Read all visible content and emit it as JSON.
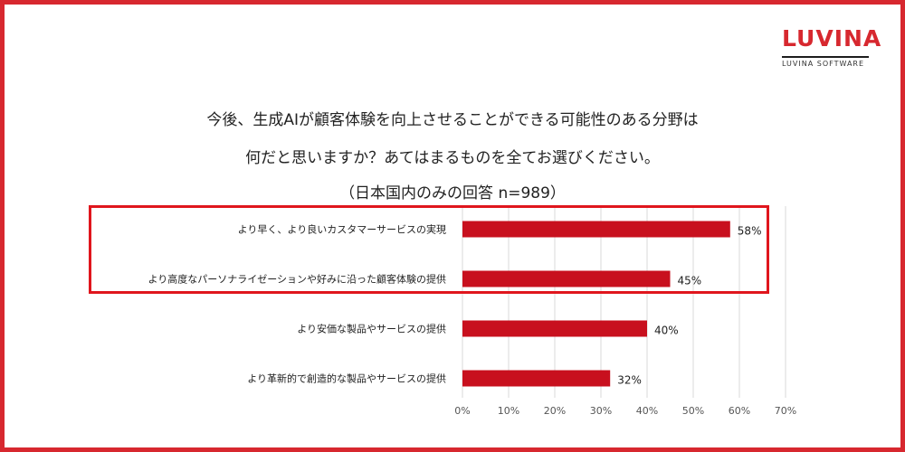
{
  "logo": {
    "mark": "LUVINA",
    "sub": "LUVINA SOFTWARE"
  },
  "title": {
    "line1": "今後、生成AIが顧客体験を向上させることができる可能性のある分野は",
    "line2": "何だと思いますか？あてはまるものを全てお選びください。",
    "line3": "（日本国内のみの回答 n=989）"
  },
  "colors": {
    "frame": "#d7282f",
    "bar": "#c8101e",
    "highlight": "#e0161d",
    "grid": "#d9d9d9"
  },
  "chart_data": {
    "type": "bar",
    "orientation": "horizontal",
    "categories": [
      "より早く、より良いカスタマーサービスの実現",
      "より高度なパーソナライゼーションや好みに沿った顧客体験の提供",
      "より安価な製品やサービスの提供",
      "より革新的で創造的な製品やサービスの提供"
    ],
    "values": [
      58,
      45,
      40,
      32
    ],
    "value_labels": [
      "58%",
      "45%",
      "40%",
      "32%"
    ],
    "xlim": [
      0,
      70
    ],
    "ticks": [
      0,
      10,
      20,
      30,
      40,
      50,
      60,
      70
    ],
    "tick_labels": [
      "0%",
      "10%",
      "20%",
      "30%",
      "40%",
      "50%",
      "60%",
      "70%"
    ],
    "grid": true,
    "highlighted_categories": [
      0,
      1
    ]
  }
}
